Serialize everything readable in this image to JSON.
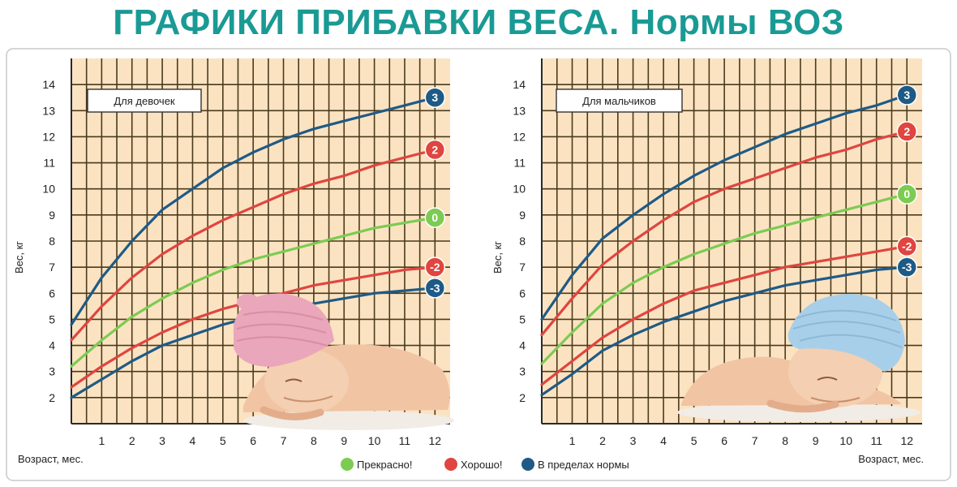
{
  "page": {
    "title": "ГРАФИКИ ПРИБАВКИ ВЕСА. Нормы ВОЗ"
  },
  "colors": {
    "title": "#1a9a94",
    "plot_bg": "#fbe3c2",
    "grid": "#4a3a1c",
    "green": "#7ccb52",
    "red": "#e0453f",
    "blue": "#1f5a86",
    "panel_border": "#c9c9c9"
  },
  "legend": {
    "items": [
      {
        "label": "Прекрасно!",
        "color": "#7ccb52"
      },
      {
        "label": "Хорошо!",
        "color": "#e0453f"
      },
      {
        "label": "В пределах нормы",
        "color": "#1f5a86"
      }
    ]
  },
  "chart_data": [
    {
      "type": "line",
      "title": "Для девочек",
      "xlabel": "Возраст, мес.",
      "ylabel": "Вес, кг",
      "xlim": [
        0,
        12.5
      ],
      "ylim": [
        1,
        15
      ],
      "x_ticks": [
        1,
        2,
        3,
        4,
        5,
        6,
        7,
        8,
        9,
        10,
        11,
        12
      ],
      "y_ticks": [
        2,
        3,
        4,
        5,
        6,
        7,
        8,
        9,
        10,
        11,
        12,
        13,
        14
      ],
      "grid": true,
      "x": [
        0,
        1,
        2,
        3,
        4,
        5,
        6,
        7,
        8,
        9,
        10,
        11,
        12
      ],
      "series": [
        {
          "marker": "3",
          "color": "blue",
          "values": [
            4.8,
            6.6,
            8.0,
            9.2,
            10.0,
            10.8,
            11.4,
            11.9,
            12.3,
            12.6,
            12.9,
            13.2,
            13.5
          ]
        },
        {
          "marker": "2",
          "color": "red",
          "values": [
            4.2,
            5.5,
            6.6,
            7.5,
            8.2,
            8.8,
            9.3,
            9.8,
            10.2,
            10.5,
            10.9,
            11.2,
            11.5
          ]
        },
        {
          "marker": "0",
          "color": "green",
          "values": [
            3.2,
            4.2,
            5.1,
            5.8,
            6.4,
            6.9,
            7.3,
            7.6,
            7.9,
            8.2,
            8.5,
            8.7,
            8.9
          ]
        },
        {
          "marker": "-2",
          "color": "red",
          "values": [
            2.4,
            3.2,
            3.9,
            4.5,
            5.0,
            5.4,
            5.7,
            6.0,
            6.3,
            6.5,
            6.7,
            6.9,
            7.0
          ]
        },
        {
          "marker": "-3",
          "color": "blue",
          "values": [
            2.0,
            2.7,
            3.4,
            4.0,
            4.4,
            4.8,
            5.1,
            5.4,
            5.6,
            5.8,
            6.0,
            6.1,
            6.2
          ]
        }
      ]
    },
    {
      "type": "line",
      "title": "Для мальчиков",
      "xlabel": "Возраст, мес.",
      "ylabel": "Вес, кг",
      "xlim": [
        0,
        12.5
      ],
      "ylim": [
        1,
        15
      ],
      "x_ticks": [
        1,
        2,
        3,
        4,
        5,
        6,
        7,
        8,
        9,
        10,
        11,
        12
      ],
      "y_ticks": [
        2,
        3,
        4,
        5,
        6,
        7,
        8,
        9,
        10,
        11,
        12,
        13,
        14
      ],
      "grid": true,
      "x": [
        0,
        1,
        2,
        3,
        4,
        5,
        6,
        7,
        8,
        9,
        10,
        11,
        12
      ],
      "series": [
        {
          "marker": "3",
          "color": "blue",
          "values": [
            5.0,
            6.7,
            8.1,
            9.0,
            9.8,
            10.5,
            11.1,
            11.6,
            12.1,
            12.5,
            12.9,
            13.2,
            13.6
          ]
        },
        {
          "marker": "2",
          "color": "red",
          "values": [
            4.4,
            5.8,
            7.1,
            8.0,
            8.8,
            9.5,
            10.0,
            10.4,
            10.8,
            11.2,
            11.5,
            11.9,
            12.2
          ]
        },
        {
          "marker": "0",
          "color": "green",
          "values": [
            3.3,
            4.5,
            5.6,
            6.4,
            7.0,
            7.5,
            7.9,
            8.3,
            8.6,
            8.9,
            9.2,
            9.5,
            9.8
          ]
        },
        {
          "marker": "-2",
          "color": "red",
          "values": [
            2.5,
            3.4,
            4.3,
            5.0,
            5.6,
            6.1,
            6.4,
            6.7,
            7.0,
            7.2,
            7.4,
            7.6,
            7.8
          ]
        },
        {
          "marker": "-3",
          "color": "blue",
          "values": [
            2.1,
            2.9,
            3.8,
            4.4,
            4.9,
            5.3,
            5.7,
            6.0,
            6.3,
            6.5,
            6.7,
            6.9,
            7.0
          ]
        }
      ]
    }
  ]
}
